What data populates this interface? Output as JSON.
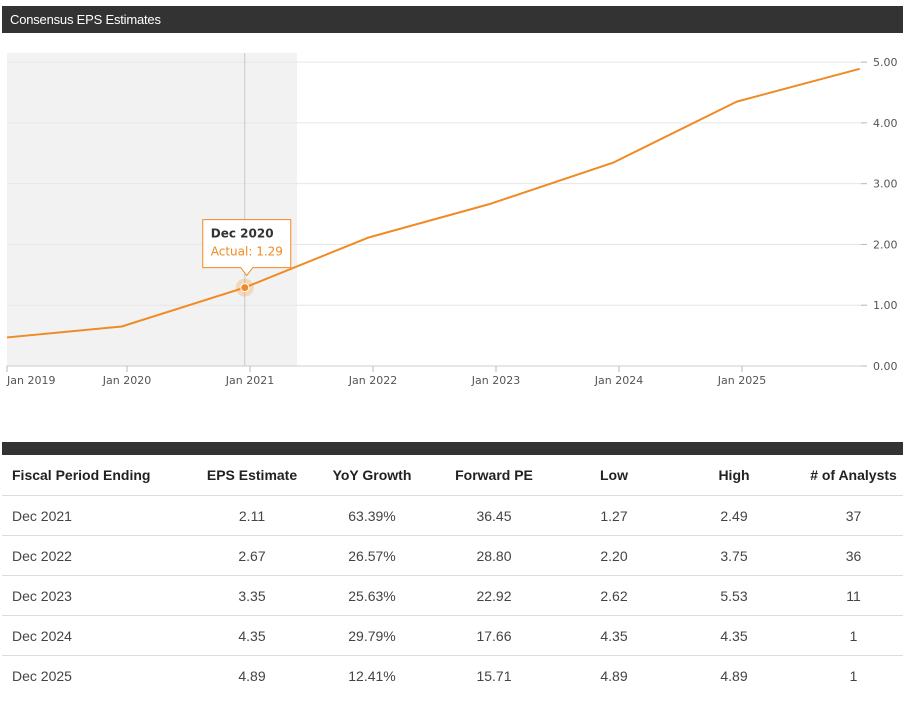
{
  "header": {
    "title": "Consensus EPS Estimates"
  },
  "chart_data": {
    "type": "line",
    "x": [
      "Dec 2018",
      "Dec 2019",
      "Dec 2020",
      "Dec 2021",
      "Dec 2022",
      "Dec 2023",
      "Dec 2024",
      "Dec 2025"
    ],
    "values": [
      0.47,
      0.65,
      1.29,
      2.11,
      2.67,
      3.35,
      4.35,
      4.89
    ],
    "series_color": "#f08a24",
    "actual_through": "Dec 2020",
    "xticks": [
      "Jan 2019",
      "Jan 2020",
      "Jan 2021",
      "Jan 2022",
      "Jan 2023",
      "Jan 2024",
      "Jan 2025"
    ],
    "yticks": [
      "0.00",
      "1.00",
      "2.00",
      "3.00",
      "4.00",
      "5.00"
    ],
    "ylim": [
      0,
      5.15
    ],
    "grid": true,
    "y_axis_side": "right",
    "tooltip": {
      "title": "Dec 2020",
      "label": "Actual: 1.29"
    }
  },
  "table": {
    "columns": [
      "Fiscal Period Ending",
      "EPS Estimate",
      "YoY Growth",
      "Forward PE",
      "Low",
      "High",
      "# of Analysts"
    ],
    "rows": [
      [
        "Dec 2021",
        "2.11",
        "63.39%",
        "36.45",
        "1.27",
        "2.49",
        "37"
      ],
      [
        "Dec 2022",
        "2.67",
        "26.57%",
        "28.80",
        "2.20",
        "3.75",
        "36"
      ],
      [
        "Dec 2023",
        "3.35",
        "25.63%",
        "22.92",
        "2.62",
        "5.53",
        "11"
      ],
      [
        "Dec 2024",
        "4.35",
        "29.79%",
        "17.66",
        "4.35",
        "4.35",
        "1"
      ],
      [
        "Dec 2025",
        "4.89",
        "12.41%",
        "15.71",
        "4.89",
        "4.89",
        "1"
      ]
    ]
  }
}
